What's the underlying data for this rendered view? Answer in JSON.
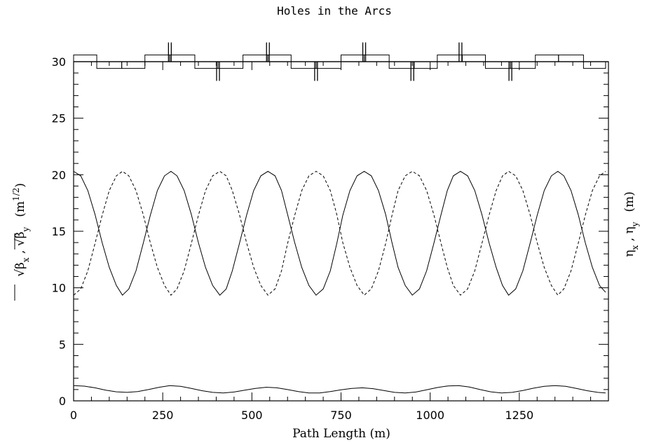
{
  "chart_data": {
    "type": "line",
    "title": "Holes in the Arcs",
    "xlabel": "Path Length (m)",
    "ylabel_left": {
      "prefix": "√β",
      "x_sub": "x",
      "sep": " , ",
      "y_sub": "y",
      "units": "(m",
      "units_sup": "1/2",
      "units_end": ")"
    },
    "ylabel_right": {
      "eta": "η",
      "x_sub": "x",
      "sep": " , ",
      "y_sub": "y",
      "units": "(m)"
    },
    "xlim": [
      0,
      1500
    ],
    "ylim": [
      0,
      30
    ],
    "x_ticks": [
      0,
      250,
      500,
      750,
      1000,
      1250
    ],
    "x_tick_labels": [
      "0",
      "250",
      "500",
      "750",
      "1000",
      "1250"
    ],
    "y_ticks": [
      0,
      5,
      10,
      15,
      20,
      25,
      30
    ],
    "y_tick_labels": [
      "0",
      "5",
      "10",
      "15",
      "20",
      "25",
      "30"
    ],
    "grid": false,
    "series": [
      {
        "style": "solid",
        "x": [
          0,
          20,
          40,
          60,
          80,
          100,
          120,
          137,
          155,
          175,
          195,
          215,
          235,
          255,
          273,
          290,
          310,
          330,
          350,
          370,
          390,
          410,
          428,
          445,
          465,
          485,
          505,
          525,
          545,
          565,
          583,
          600,
          620,
          640,
          660,
          680,
          700,
          720,
          738,
          755,
          775,
          795,
          815,
          835,
          855,
          875,
          893,
          910,
          930,
          950,
          970,
          990,
          1010,
          1030,
          1048,
          1065,
          1085,
          1105,
          1125,
          1145,
          1165,
          1185,
          1203,
          1220,
          1240,
          1260,
          1280,
          1300,
          1320,
          1340,
          1358,
          1375,
          1395,
          1415,
          1435,
          1455,
          1475,
          1492
        ],
        "y": [
          20.3,
          19.9,
          18.6,
          16.5,
          14.0,
          11.8,
          10.2,
          9.35,
          9.9,
          11.5,
          13.9,
          16.4,
          18.6,
          19.9,
          20.3,
          19.9,
          18.6,
          16.5,
          14.0,
          11.8,
          10.2,
          9.35,
          9.9,
          11.5,
          13.9,
          16.4,
          18.6,
          19.9,
          20.3,
          19.9,
          18.6,
          16.5,
          14.0,
          11.8,
          10.2,
          9.35,
          9.9,
          11.5,
          13.9,
          16.4,
          18.6,
          19.9,
          20.3,
          19.9,
          18.6,
          16.5,
          14.0,
          11.8,
          10.2,
          9.35,
          9.9,
          11.5,
          13.9,
          16.4,
          18.6,
          19.9,
          20.3,
          19.9,
          18.6,
          16.5,
          14.0,
          11.8,
          10.2,
          9.35,
          9.9,
          11.5,
          13.9,
          16.4,
          18.6,
          19.9,
          20.3,
          19.9,
          18.6,
          16.5,
          14.0,
          11.8,
          10.2,
          9.6
        ]
      },
      {
        "style": "dashed",
        "x": [
          0,
          20,
          40,
          60,
          80,
          100,
          120,
          137,
          155,
          175,
          195,
          215,
          235,
          255,
          273,
          290,
          310,
          330,
          350,
          370,
          390,
          410,
          428,
          445,
          465,
          485,
          505,
          525,
          545,
          565,
          583,
          600,
          620,
          640,
          660,
          680,
          700,
          720,
          738,
          755,
          775,
          795,
          815,
          835,
          855,
          875,
          893,
          910,
          930,
          950,
          970,
          990,
          1010,
          1030,
          1048,
          1065,
          1085,
          1105,
          1125,
          1145,
          1165,
          1185,
          1203,
          1220,
          1240,
          1260,
          1280,
          1300,
          1320,
          1340,
          1358,
          1375,
          1395,
          1415,
          1435,
          1455,
          1475,
          1492
        ],
        "y": [
          9.35,
          9.9,
          11.5,
          13.9,
          16.4,
          18.6,
          19.9,
          20.3,
          19.9,
          18.6,
          16.5,
          14.0,
          11.8,
          10.2,
          9.35,
          9.9,
          11.5,
          13.9,
          16.4,
          18.6,
          19.9,
          20.3,
          19.9,
          18.6,
          16.5,
          14.0,
          11.8,
          10.2,
          9.35,
          9.9,
          11.5,
          13.9,
          16.4,
          18.6,
          19.9,
          20.3,
          19.9,
          18.6,
          16.5,
          14.0,
          11.8,
          10.2,
          9.35,
          9.9,
          11.5,
          13.9,
          16.4,
          18.6,
          19.9,
          20.3,
          19.9,
          18.6,
          16.5,
          14.0,
          11.8,
          10.2,
          9.35,
          9.9,
          11.5,
          13.9,
          16.4,
          18.6,
          19.9,
          20.3,
          19.9,
          18.6,
          16.5,
          14.0,
          11.8,
          10.2,
          9.35,
          9.9,
          11.5,
          13.9,
          16.4,
          18.6,
          19.9,
          20.3
        ]
      },
      {
        "style": "solid",
        "x": [
          0,
          30,
          60,
          90,
          120,
          150,
          180,
          210,
          240,
          270,
          300,
          330,
          360,
          390,
          420,
          450,
          480,
          510,
          540,
          570,
          600,
          630,
          660,
          690,
          720,
          750,
          780,
          810,
          840,
          870,
          900,
          930,
          960,
          990,
          1020,
          1050,
          1080,
          1110,
          1140,
          1170,
          1200,
          1230,
          1260,
          1290,
          1320,
          1350,
          1380,
          1410,
          1440,
          1470,
          1492
        ],
        "y": [
          1.35,
          1.3,
          1.15,
          0.95,
          0.8,
          0.75,
          0.82,
          1.0,
          1.2,
          1.35,
          1.28,
          1.1,
          0.9,
          0.75,
          0.7,
          0.78,
          0.95,
          1.1,
          1.2,
          1.15,
          1.0,
          0.82,
          0.7,
          0.7,
          0.82,
          0.98,
          1.1,
          1.15,
          1.08,
          0.92,
          0.75,
          0.7,
          0.78,
          0.98,
          1.18,
          1.32,
          1.35,
          1.22,
          1.0,
          0.8,
          0.7,
          0.75,
          0.92,
          1.12,
          1.28,
          1.35,
          1.28,
          1.1,
          0.9,
          0.75,
          0.7
        ]
      }
    ],
    "lattice": {
      "baseline": 30,
      "segments": [
        {
          "x0": 0,
          "x1": 65,
          "y": 30.6
        },
        {
          "x0": 65,
          "x1": 135,
          "y": 29.4
        },
        {
          "x0": 135,
          "x1": 200,
          "y": 29.4
        },
        {
          "x0": 200,
          "x1": 270,
          "y": 30.6
        },
        {
          "x0": 270,
          "x1": 340,
          "y": 30.6
        },
        {
          "x0": 340,
          "x1": 405,
          "y": 29.4
        },
        {
          "x0": 405,
          "x1": 475,
          "y": 29.4
        },
        {
          "x0": 475,
          "x1": 545,
          "y": 30.6
        },
        {
          "x0": 545,
          "x1": 610,
          "y": 30.6
        },
        {
          "x0": 610,
          "x1": 680,
          "y": 29.4
        },
        {
          "x0": 680,
          "x1": 750,
          "y": 29.4
        },
        {
          "x0": 750,
          "x1": 815,
          "y": 30.6
        },
        {
          "x0": 815,
          "x1": 885,
          "y": 30.6
        },
        {
          "x0": 885,
          "x1": 955,
          "y": 29.4
        },
        {
          "x0": 955,
          "x1": 1020,
          "y": 29.4
        },
        {
          "x0": 1020,
          "x1": 1090,
          "y": 30.6
        },
        {
          "x0": 1090,
          "x1": 1155,
          "y": 30.6
        },
        {
          "x0": 1155,
          "x1": 1225,
          "y": 29.4
        },
        {
          "x0": 1225,
          "x1": 1295,
          "y": 29.4
        },
        {
          "x0": 1295,
          "x1": 1360,
          "y": 30.6
        },
        {
          "x0": 1360,
          "x1": 1430,
          "y": 30.6
        },
        {
          "x0": 1430,
          "x1": 1492,
          "y": 29.4
        }
      ],
      "markers_up": [
        270,
        545,
        815,
        1085
      ],
      "markers_down": [
        405,
        680,
        950,
        1225
      ]
    }
  }
}
